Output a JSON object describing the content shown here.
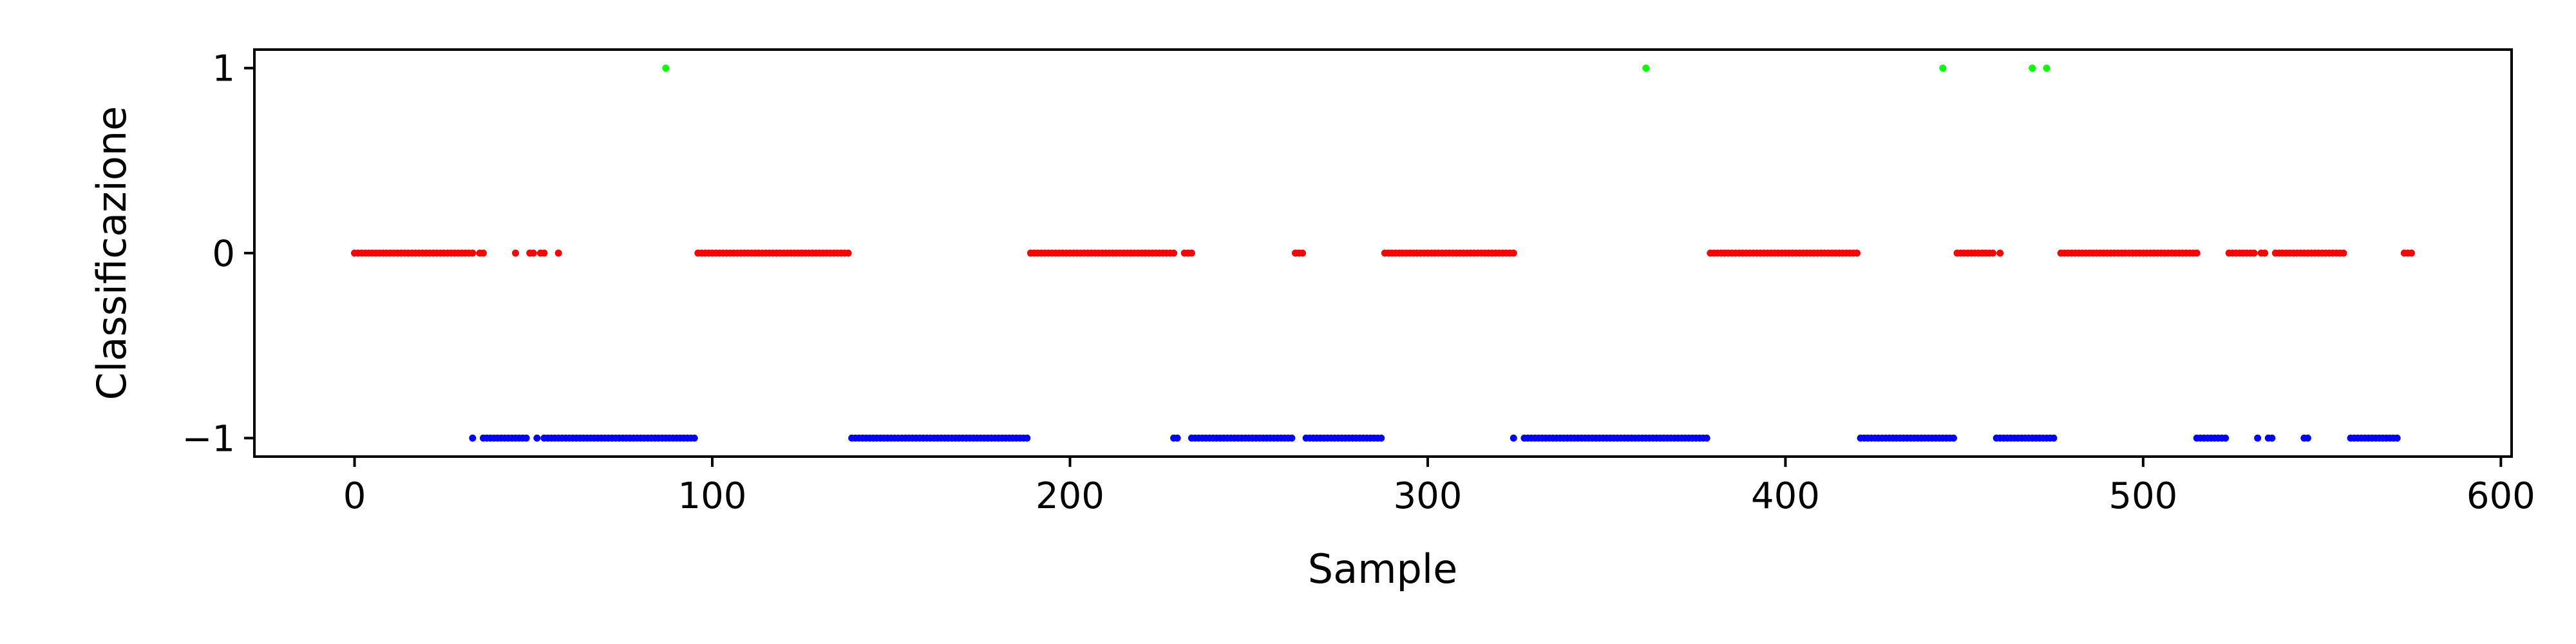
{
  "chart_data": {
    "type": "scatter",
    "title": "",
    "xlabel": "Sample",
    "ylabel": "Classificazione",
    "xlim": [
      -28,
      603
    ],
    "ylim": [
      -1.1,
      1.1
    ],
    "x_ticks": [
      0,
      100,
      200,
      300,
      400,
      500,
      600
    ],
    "x_tick_labels": [
      "0",
      "100",
      "200",
      "300",
      "400",
      "500",
      "600"
    ],
    "y_ticks": [
      -1,
      0,
      1
    ],
    "y_tick_labels": [
      "−1",
      "0",
      "1"
    ],
    "grid": false,
    "legend": "none",
    "colors": {
      "1": "#00ff00",
      "0": "#ff0000",
      "-1": "#0000ff"
    },
    "series": [
      {
        "class": 1,
        "color": "#00ff00",
        "x": [
          87,
          361,
          444,
          469,
          473
        ]
      },
      {
        "class": 0,
        "color": "#ff0000",
        "runs": [
          [
            0,
            33
          ],
          [
            35,
            36
          ],
          [
            45,
            45
          ],
          [
            49,
            50
          ],
          [
            52,
            53
          ],
          [
            57,
            57
          ],
          [
            96,
            138
          ],
          [
            189,
            229
          ],
          [
            232,
            234
          ],
          [
            263,
            265
          ],
          [
            288,
            324
          ],
          [
            379,
            420
          ],
          [
            448,
            458
          ],
          [
            460,
            460
          ],
          [
            477,
            515
          ],
          [
            524,
            531
          ],
          [
            533,
            534
          ],
          [
            537,
            556
          ],
          [
            573,
            575
          ]
        ]
      },
      {
        "class": -1,
        "color": "#0000ff",
        "runs": [
          [
            33,
            33
          ],
          [
            36,
            48
          ],
          [
            51,
            51
          ],
          [
            53,
            95
          ],
          [
            139,
            188
          ],
          [
            229,
            230
          ],
          [
            234,
            262
          ],
          [
            266,
            287
          ],
          [
            324,
            324
          ],
          [
            327,
            378
          ],
          [
            421,
            447
          ],
          [
            459,
            475
          ],
          [
            515,
            523
          ],
          [
            532,
            532
          ],
          [
            535,
            536
          ],
          [
            545,
            546
          ],
          [
            558,
            571
          ]
        ]
      }
    ]
  }
}
